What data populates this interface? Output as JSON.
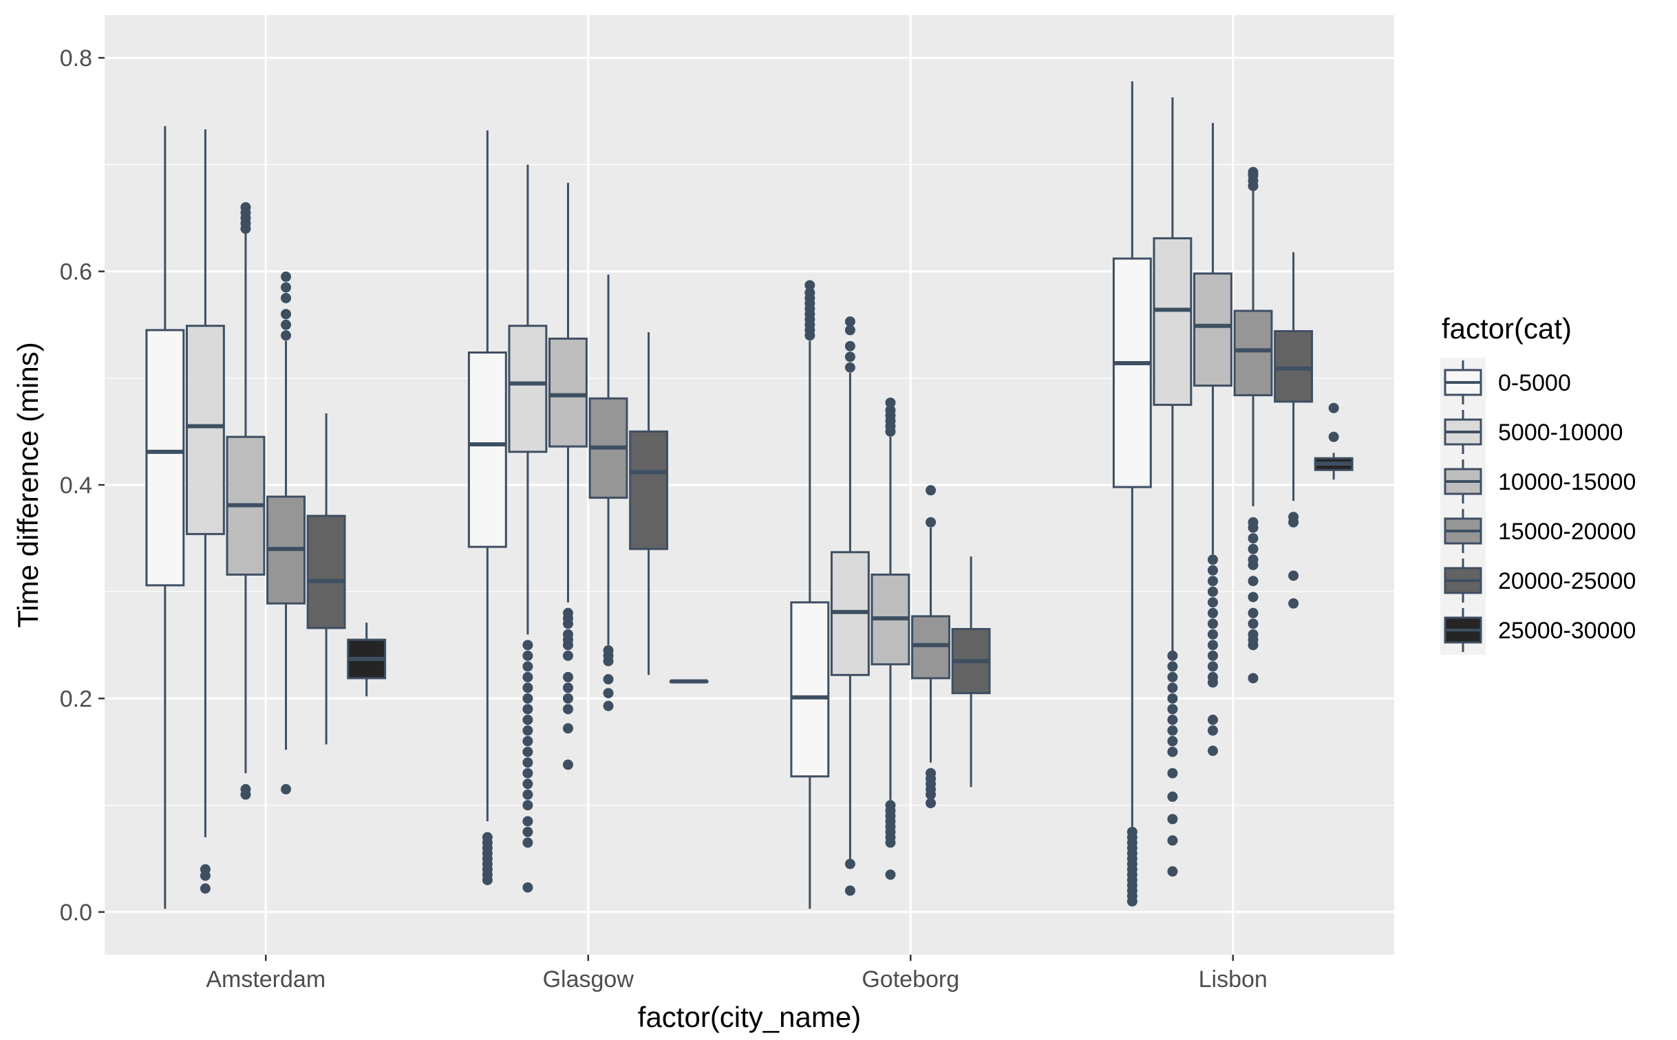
{
  "colors": {
    "panel_background": "#EBEBEB",
    "gridline": "#FFFFFF",
    "box_outline": "#3E4F62",
    "fills": [
      "#F7F7F7",
      "#DADADA",
      "#BDBDBD",
      "#969696",
      "#636363",
      "#252525"
    ]
  },
  "chart_data": {
    "type": "boxplot",
    "xlabel": "factor(city_name)",
    "ylabel": "Time difference (mins)",
    "ylim": [
      -0.04,
      0.84
    ],
    "yticks": [
      0.0,
      0.2,
      0.4,
      0.6,
      0.8
    ],
    "ytick_labels": [
      "0.0",
      "0.2",
      "0.4",
      "0.6",
      "0.8"
    ],
    "grid": true,
    "legend": {
      "title": "factor(cat)",
      "position": "right",
      "entries": [
        "0-5000",
        "5000-10000",
        "10000-15000",
        "15000-20000",
        "20000-25000",
        "25000-30000"
      ]
    },
    "categories": [
      "Amsterdam",
      "Glasgow",
      "Goteborg",
      "Lisbon"
    ],
    "series": [
      {
        "name": "0-5000",
        "boxes": [
          {
            "whisker_low": 0.003,
            "q1": 0.306,
            "median": 0.431,
            "q3": 0.545,
            "whisker_high": 0.736,
            "outliers": []
          },
          {
            "whisker_low": 0.085,
            "q1": 0.342,
            "median": 0.438,
            "q3": 0.524,
            "whisker_high": 0.732,
            "outliers": [
              0.03,
              0.035,
              0.04,
              0.045,
              0.05,
              0.055,
              0.06,
              0.065,
              0.07
            ]
          },
          {
            "whisker_low": 0.003,
            "q1": 0.127,
            "median": 0.201,
            "q3": 0.29,
            "whisker_high": 0.535,
            "outliers": [
              0.54,
              0.545,
              0.55,
              0.555,
              0.56,
              0.565,
              0.57,
              0.575,
              0.58,
              0.587
            ]
          },
          {
            "whisker_low": 0.08,
            "q1": 0.398,
            "median": 0.514,
            "q3": 0.612,
            "whisker_high": 0.778,
            "outliers": [
              0.01,
              0.015,
              0.02,
              0.025,
              0.03,
              0.035,
              0.04,
              0.045,
              0.05,
              0.055,
              0.06,
              0.065,
              0.07,
              0.075
            ]
          }
        ]
      },
      {
        "name": "5000-10000",
        "boxes": [
          {
            "whisker_low": 0.07,
            "q1": 0.354,
            "median": 0.455,
            "q3": 0.549,
            "whisker_high": 0.733,
            "outliers": [
              0.022,
              0.034,
              0.04
            ]
          },
          {
            "whisker_low": 0.26,
            "q1": 0.431,
            "median": 0.495,
            "q3": 0.549,
            "whisker_high": 0.7,
            "outliers": [
              0.023,
              0.065,
              0.075,
              0.085,
              0.1,
              0.11,
              0.12,
              0.13,
              0.14,
              0.15,
              0.16,
              0.17,
              0.18,
              0.19,
              0.2,
              0.21,
              0.22,
              0.23,
              0.24,
              0.25
            ]
          },
          {
            "whisker_low": 0.046,
            "q1": 0.222,
            "median": 0.281,
            "q3": 0.337,
            "whisker_high": 0.505,
            "outliers": [
              0.02,
              0.045,
              0.51,
              0.52,
              0.53,
              0.545,
              0.553
            ]
          },
          {
            "whisker_low": 0.24,
            "q1": 0.475,
            "median": 0.564,
            "q3": 0.631,
            "whisker_high": 0.763,
            "outliers": [
              0.038,
              0.067,
              0.087,
              0.108,
              0.13,
              0.15,
              0.16,
              0.17,
              0.18,
              0.19,
              0.2,
              0.21,
              0.22,
              0.23,
              0.24
            ]
          }
        ]
      },
      {
        "name": "10000-15000",
        "boxes": [
          {
            "whisker_low": 0.13,
            "q1": 0.316,
            "median": 0.381,
            "q3": 0.445,
            "whisker_high": 0.64,
            "outliers": [
              0.11,
              0.115,
              0.64,
              0.645,
              0.65,
              0.655,
              0.66
            ]
          },
          {
            "whisker_low": 0.29,
            "q1": 0.436,
            "median": 0.484,
            "q3": 0.537,
            "whisker_high": 0.683,
            "outliers": [
              0.138,
              0.172,
              0.19,
              0.2,
              0.21,
              0.22,
              0.24,
              0.25,
              0.255,
              0.26,
              0.27,
              0.275,
              0.28
            ]
          },
          {
            "whisker_low": 0.105,
            "q1": 0.232,
            "median": 0.275,
            "q3": 0.316,
            "whisker_high": 0.445,
            "outliers": [
              0.035,
              0.065,
              0.07,
              0.075,
              0.08,
              0.085,
              0.09,
              0.095,
              0.1,
              0.45,
              0.455,
              0.46,
              0.465,
              0.47,
              0.477
            ]
          },
          {
            "whisker_low": 0.335,
            "q1": 0.493,
            "median": 0.549,
            "q3": 0.598,
            "whisker_high": 0.739,
            "outliers": [
              0.151,
              0.17,
              0.18,
              0.215,
              0.22,
              0.23,
              0.24,
              0.25,
              0.26,
              0.27,
              0.28,
              0.29,
              0.3,
              0.31,
              0.32,
              0.33
            ]
          }
        ]
      },
      {
        "name": "15000-20000",
        "boxes": [
          {
            "whisker_low": 0.152,
            "q1": 0.289,
            "median": 0.34,
            "q3": 0.389,
            "whisker_high": 0.535,
            "outliers": [
              0.115,
              0.54,
              0.55,
              0.56,
              0.575,
              0.585,
              0.595
            ]
          },
          {
            "whisker_low": 0.25,
            "q1": 0.388,
            "median": 0.435,
            "q3": 0.481,
            "whisker_high": 0.597,
            "outliers": [
              0.193,
              0.205,
              0.218,
              0.235,
              0.24,
              0.245
            ]
          },
          {
            "whisker_low": 0.14,
            "q1": 0.219,
            "median": 0.25,
            "q3": 0.277,
            "whisker_high": 0.36,
            "outliers": [
              0.102,
              0.11,
              0.115,
              0.12,
              0.125,
              0.13,
              0.365,
              0.395
            ]
          },
          {
            "whisker_low": 0.38,
            "q1": 0.484,
            "median": 0.526,
            "q3": 0.563,
            "whisker_high": 0.683,
            "outliers": [
              0.219,
              0.25,
              0.255,
              0.26,
              0.27,
              0.28,
              0.295,
              0.31,
              0.325,
              0.33,
              0.34,
              0.35,
              0.36,
              0.365,
              0.68,
              0.685,
              0.69,
              0.693
            ]
          }
        ]
      },
      {
        "name": "20000-25000",
        "boxes": [
          {
            "whisker_low": 0.157,
            "q1": 0.266,
            "median": 0.31,
            "q3": 0.371,
            "whisker_high": 0.467,
            "outliers": []
          },
          {
            "whisker_low": 0.222,
            "q1": 0.34,
            "median": 0.412,
            "q3": 0.45,
            "whisker_high": 0.543,
            "outliers": []
          },
          {
            "whisker_low": 0.117,
            "q1": 0.205,
            "median": 0.235,
            "q3": 0.265,
            "whisker_high": 0.333,
            "outliers": []
          },
          {
            "whisker_low": 0.385,
            "q1": 0.478,
            "median": 0.509,
            "q3": 0.544,
            "whisker_high": 0.618,
            "outliers": [
              0.289,
              0.315,
              0.365,
              0.37
            ]
          }
        ]
      },
      {
        "name": "25000-30000",
        "boxes": [
          {
            "whisker_low": 0.202,
            "q1": 0.219,
            "median": 0.237,
            "q3": 0.255,
            "whisker_high": 0.271,
            "outliers": []
          },
          {
            "whisker_low": 0.216,
            "q1": 0.216,
            "median": 0.216,
            "q3": 0.216,
            "whisker_high": 0.216,
            "outliers": []
          },
          null,
          {
            "whisker_low": 0.405,
            "q1": 0.414,
            "median": 0.42,
            "q3": 0.425,
            "whisker_high": 0.43,
            "outliers": [
              0.445,
              0.472
            ]
          }
        ]
      }
    ]
  }
}
